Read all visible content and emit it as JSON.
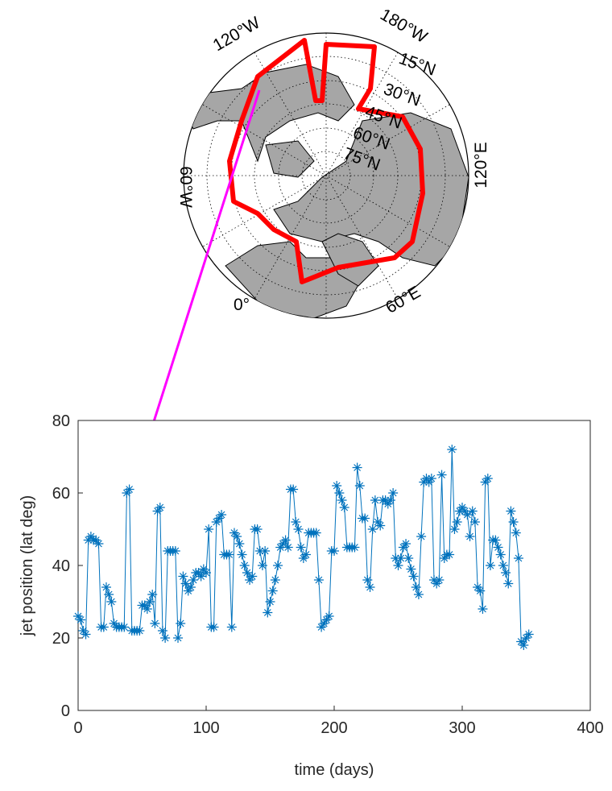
{
  "map": {
    "labels": [
      "120°W",
      "180°W",
      "15°N",
      "30°N",
      "45°N",
      "60°N",
      "75°N",
      "60°W",
      "120°E",
      "0°",
      "60°E"
    ]
  },
  "chart_data": {
    "type": "line",
    "xlabel": "time (days)",
    "ylabel": "jet position (lat deg)",
    "color": "#0072bd",
    "marker": "asterisk",
    "xlim": [
      0,
      400
    ],
    "xticks": [
      0,
      100,
      200,
      300,
      400
    ],
    "ylim": [
      0,
      80
    ],
    "yticks": [
      0,
      20,
      40,
      60,
      80
    ],
    "x": [
      0,
      2,
      4,
      6,
      8,
      10,
      12,
      14,
      16,
      18,
      20,
      22,
      24,
      26,
      28,
      30,
      32,
      34,
      36,
      38,
      40,
      42,
      44,
      46,
      48,
      50,
      52,
      54,
      56,
      58,
      60,
      62,
      64,
      66,
      68,
      70,
      72,
      74,
      76,
      78,
      80,
      82,
      84,
      86,
      88,
      90,
      92,
      94,
      96,
      98,
      100,
      102,
      104,
      106,
      108,
      110,
      112,
      114,
      116,
      118,
      120,
      122,
      124,
      126,
      128,
      130,
      132,
      134,
      136,
      138,
      140,
      142,
      144,
      146,
      148,
      150,
      152,
      154,
      156,
      158,
      160,
      162,
      164,
      166,
      168,
      170,
      172,
      174,
      176,
      178,
      180,
      182,
      184,
      186,
      188,
      190,
      192,
      194,
      196,
      198,
      200,
      202,
      204,
      206,
      208,
      210,
      212,
      214,
      216,
      218,
      220,
      222,
      224,
      226,
      228,
      230,
      232,
      234,
      236,
      238,
      240,
      242,
      244,
      246,
      248,
      250,
      252,
      254,
      256,
      258,
      260,
      262,
      264,
      266,
      268,
      270,
      272,
      274,
      276,
      278,
      280,
      282,
      284,
      286,
      288,
      290,
      292,
      294,
      296,
      298,
      300,
      302,
      304,
      306,
      308,
      310,
      312,
      314,
      316,
      318,
      320,
      322,
      324,
      326,
      328,
      330,
      332,
      334,
      336,
      338,
      340,
      342,
      344,
      346,
      348,
      350,
      352
    ],
    "values": [
      26,
      25,
      22,
      21,
      47,
      48,
      47,
      47,
      46,
      23,
      23,
      34,
      32,
      30,
      24,
      23,
      23,
      23,
      23,
      60,
      61,
      22,
      22,
      22,
      22,
      29,
      29,
      28,
      30,
      32,
      24,
      55,
      56,
      22,
      20,
      44,
      44,
      44,
      44,
      20,
      24,
      37,
      35,
      33,
      34,
      36,
      38,
      38,
      37,
      39,
      38,
      50,
      23,
      23,
      52,
      53,
      54,
      43,
      43,
      43,
      23,
      49,
      48,
      46,
      43,
      40,
      38,
      36,
      37,
      50,
      50,
      44,
      40,
      44,
      27,
      30,
      33,
      36,
      40,
      45,
      46,
      47,
      45,
      61,
      61,
      52,
      50,
      45,
      42,
      43,
      49,
      49,
      49,
      49,
      36,
      23,
      24,
      25,
      26,
      44,
      44,
      62,
      60,
      58,
      56,
      45,
      45,
      45,
      45,
      67,
      62,
      53,
      53,
      36,
      34,
      50,
      58,
      52,
      51,
      58,
      58,
      57,
      58,
      60,
      42,
      40,
      42,
      45,
      46,
      42,
      39,
      37,
      34,
      32,
      48,
      63,
      64,
      63,
      64,
      36,
      35,
      36,
      65,
      42,
      43,
      43,
      72,
      50,
      52,
      55,
      56,
      55,
      54,
      48,
      55,
      52,
      34,
      33,
      28,
      63,
      64,
      40,
      47,
      47,
      45,
      43,
      40,
      38,
      35,
      55,
      52,
      49,
      42,
      19,
      18,
      20,
      21
    ]
  }
}
